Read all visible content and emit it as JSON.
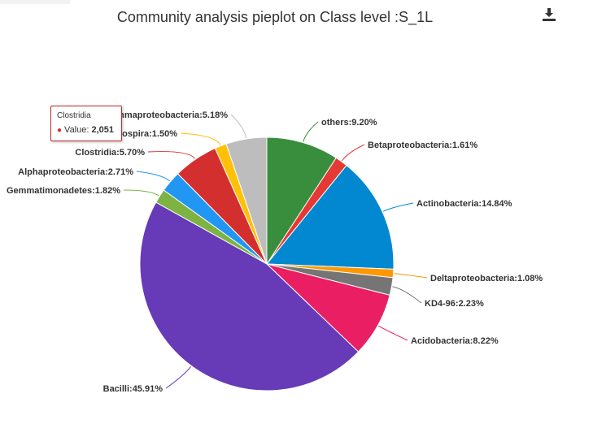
{
  "page": {
    "title": "Community analysis pieplot on Class level :S_1L",
    "download_icon": "download-icon"
  },
  "tooltip": {
    "title": "Clostridia",
    "value_label": "Value:",
    "value": "2,051",
    "color": "#d32f2f"
  },
  "chart_data": {
    "type": "pie",
    "title": "Community analysis pieplot on Class level :S_1L",
    "slices": [
      {
        "name": "others",
        "label": "others:9.20%",
        "value": 9.2,
        "color": "#388e3c"
      },
      {
        "name": "Betaproteobacteria",
        "label": "Betaproteobacteria:1.61%",
        "value": 1.61,
        "color": "#e53935"
      },
      {
        "name": "Actinobacteria",
        "label": "Actinobacteria:14.84%",
        "value": 14.84,
        "color": "#0288d1"
      },
      {
        "name": "Deltaproteobacteria",
        "label": "Deltaproteobacteria:1.08%",
        "value": 1.08,
        "color": "#ff9800"
      },
      {
        "name": "KD4-96",
        "label": "KD4-96:2.23%",
        "value": 2.23,
        "color": "#757575"
      },
      {
        "name": "Acidobacteria",
        "label": "Acidobacteria:8.22%",
        "value": 8.22,
        "color": "#e91e63"
      },
      {
        "name": "Bacilli",
        "label": "Bacilli:45.91%",
        "value": 45.91,
        "color": "#673ab7"
      },
      {
        "name": "Gemmatimonadetes",
        "label": "Gemmatimonadetes:1.82%",
        "value": 1.82,
        "color": "#7cb342"
      },
      {
        "name": "Alphaproteobacteria",
        "label": "Alphaproteobacteria:2.71%",
        "value": 2.71,
        "color": "#2196f3"
      },
      {
        "name": "Clostridia",
        "label": "Clostridia:5.70%",
        "value": 5.7,
        "color": "#d32f2f"
      },
      {
        "name": "Nitrospira",
        "label": "Nitrospira:1.50%",
        "value": 1.5,
        "color": "#ffc107"
      },
      {
        "name": "Gammaproteobacteria",
        "label": "Gammaproteobacteria:5.18%",
        "value": 5.18,
        "color": "#bdbdbd"
      }
    ]
  }
}
